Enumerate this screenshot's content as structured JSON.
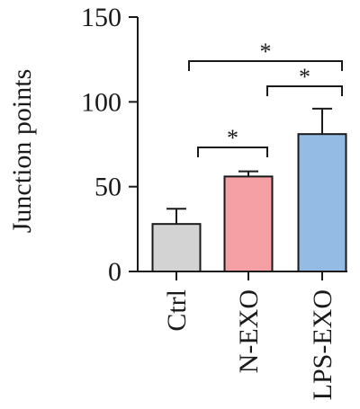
{
  "chart_data": {
    "type": "bar",
    "ylabel": "Junction points",
    "ylim": [
      0,
      150
    ],
    "yticks": [
      0,
      50,
      100,
      150
    ],
    "categories": [
      "Ctrl",
      "N-EXO",
      "LPS-EXO"
    ],
    "values": [
      28,
      56,
      81
    ],
    "errors": [
      9,
      3,
      15
    ],
    "colors": [
      "#d3d3d3",
      "#f4a0a4",
      "#93bbe3"
    ],
    "significance": [
      {
        "from": 1,
        "to": 2,
        "label": "*"
      },
      {
        "from": 0,
        "to": 2,
        "label": "*"
      },
      {
        "from": 0,
        "to": 1,
        "label": "*"
      }
    ]
  }
}
